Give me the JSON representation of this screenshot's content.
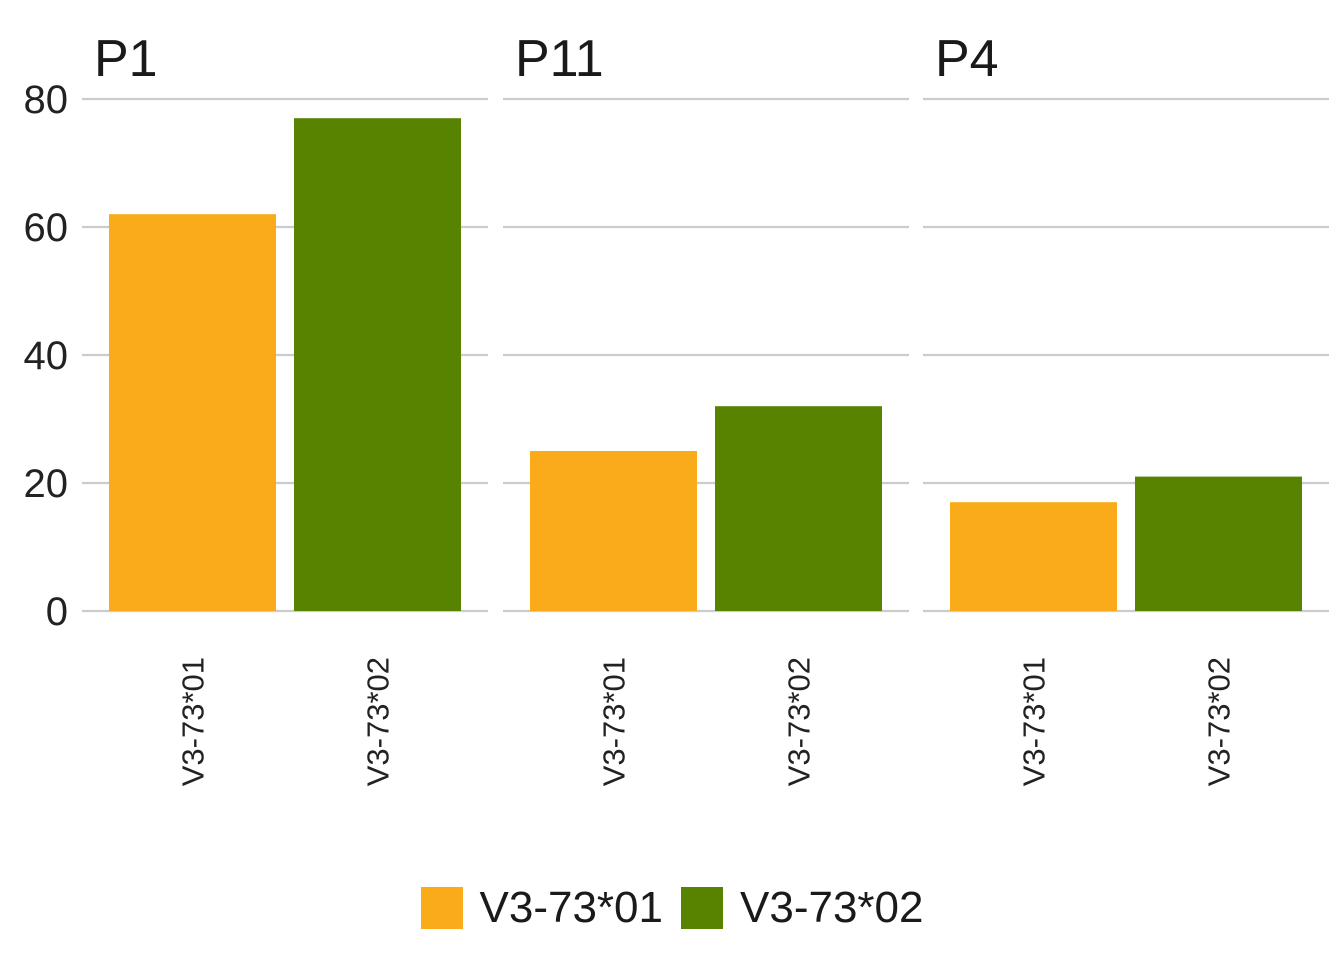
{
  "chart_data": {
    "type": "bar",
    "facets": [
      {
        "title": "P1",
        "categories": [
          "V3-73*01",
          "V3-73*02"
        ],
        "values": [
          62,
          77
        ]
      },
      {
        "title": "P11",
        "categories": [
          "V3-73*01",
          "V3-73*02"
        ],
        "values": [
          25,
          32
        ]
      },
      {
        "title": "P4",
        "categories": [
          "V3-73*01",
          "V3-73*02"
        ],
        "values": [
          17,
          21
        ]
      }
    ],
    "series": [
      {
        "name": "V3-73*01",
        "color": "#F9AB1A"
      },
      {
        "name": "V3-73*02",
        "color": "#588300"
      }
    ],
    "yticks": [
      "0",
      "20",
      "40",
      "60",
      "80"
    ],
    "ylim": [
      0,
      80
    ],
    "grid": true,
    "legend_position": "bottom",
    "xlabel": "",
    "ylabel": ""
  }
}
